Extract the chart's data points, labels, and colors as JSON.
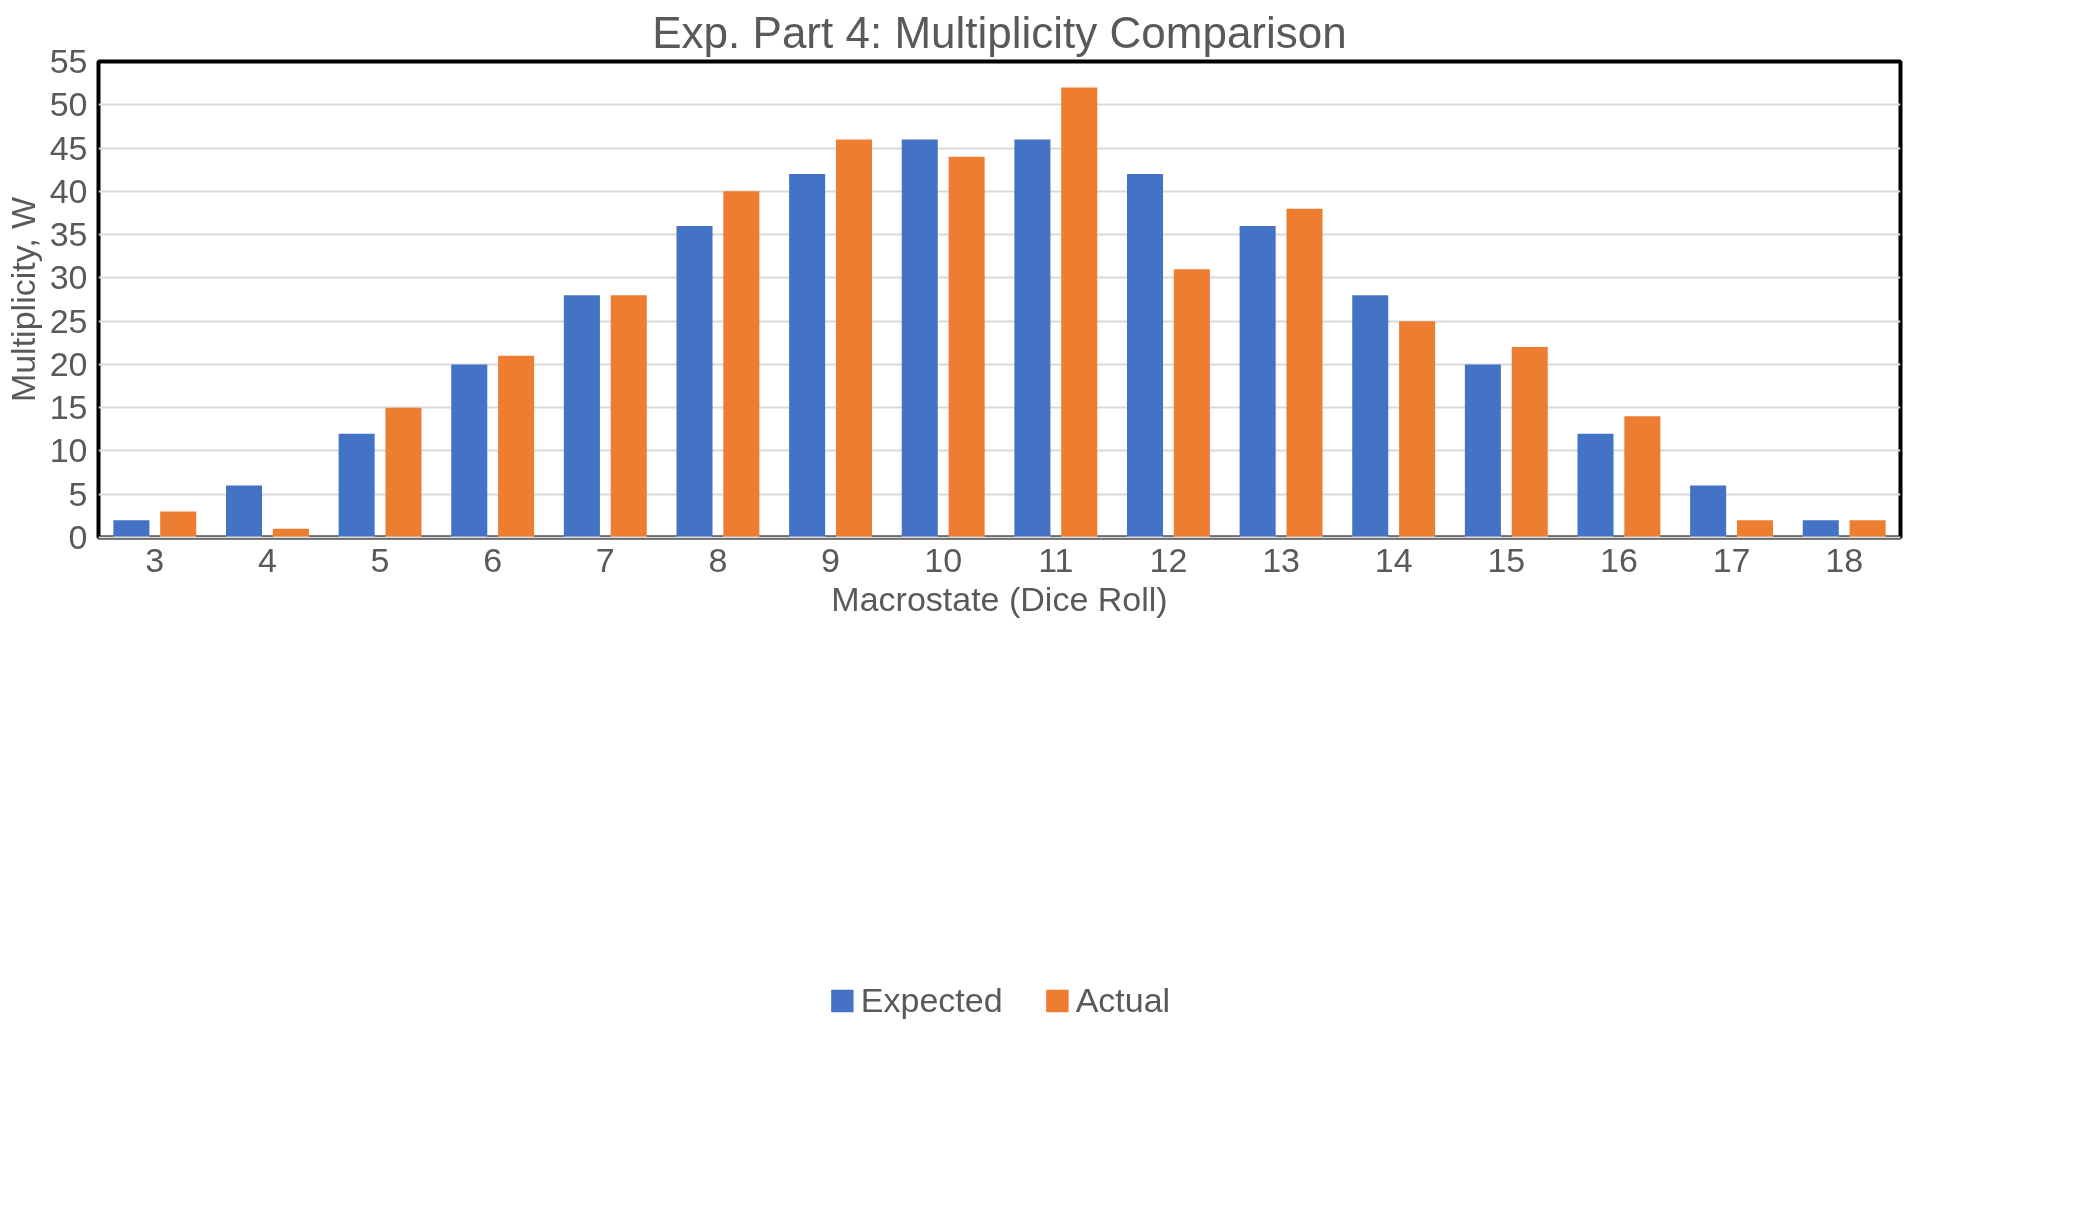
{
  "chart_data": {
    "type": "bar",
    "title": "Exp. Part 4: Multiplicity Comparison",
    "xlabel": "Macrostate (Dice Roll)",
    "ylabel": "Multiplicity, W",
    "categories": [
      "3",
      "4",
      "5",
      "6",
      "7",
      "8",
      "9",
      "10",
      "11",
      "12",
      "13",
      "14",
      "15",
      "16",
      "17",
      "18"
    ],
    "series": [
      {
        "name": "Expected",
        "color": "#4472c4",
        "values": [
          2,
          6,
          12,
          20,
          28,
          36,
          42,
          46,
          46,
          42,
          36,
          28,
          20,
          12,
          6,
          2
        ]
      },
      {
        "name": "Actual",
        "color": "#ed7d31",
        "values": [
          3,
          1,
          15,
          21,
          28,
          40,
          46,
          44,
          52,
          31,
          38,
          25,
          22,
          14,
          2,
          2
        ]
      }
    ],
    "ylim": [
      0,
      55
    ],
    "yticks": [
      0,
      5,
      10,
      15,
      20,
      25,
      30,
      35,
      40,
      45,
      50,
      55
    ],
    "grid": "y",
    "legend": "bottom"
  }
}
